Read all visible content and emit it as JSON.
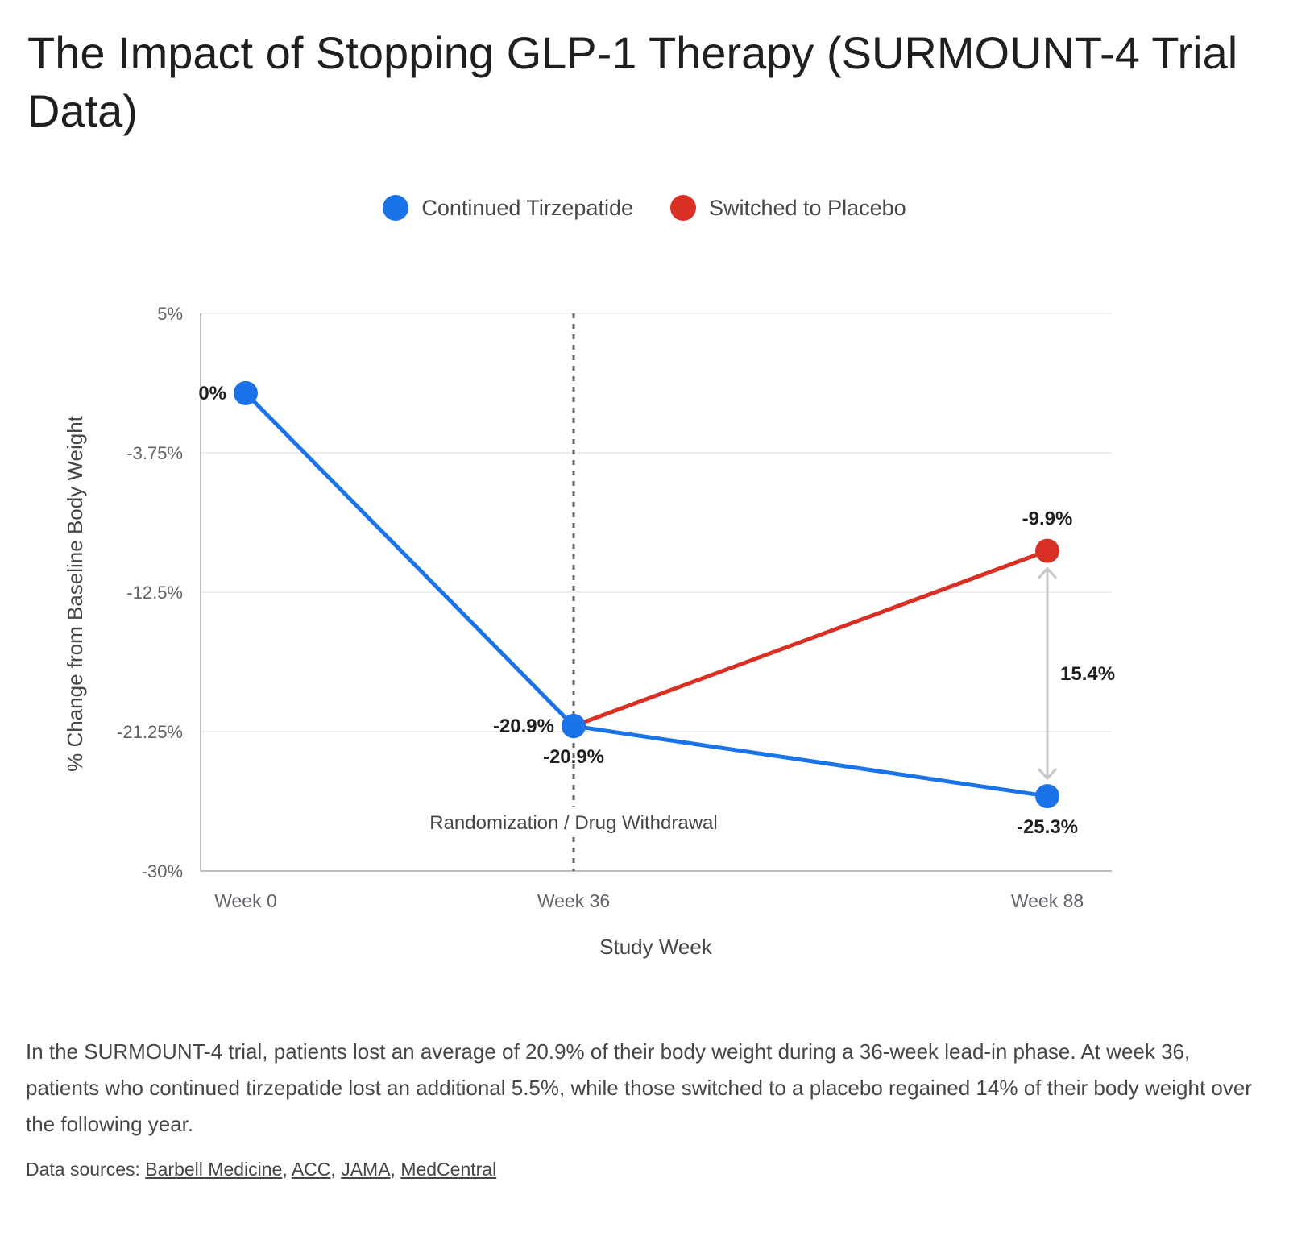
{
  "title": "The Impact of Stopping GLP-1 Therapy (SURMOUNT-4 Trial Data)",
  "colors": {
    "continued": "#1a73e8",
    "placebo": "#d93025",
    "gap_arrow": "#c7c7c7",
    "grid": "#e8e8e8",
    "axis": "#bdbdbd",
    "divider": "#5f6368"
  },
  "chart_data": {
    "type": "line",
    "xlabel": "Study Week",
    "ylabel": "% Change from Baseline Body Weight",
    "x": [
      0,
      36,
      88
    ],
    "x_tick_labels": [
      "Week 0",
      "Week 36",
      "Week 88"
    ],
    "ylim": [
      -30,
      5
    ],
    "y_ticks": [
      5,
      -3.75,
      -12.5,
      -21.25,
      -30
    ],
    "y_tick_labels": [
      "5%",
      "-3.75%",
      "-12.5%",
      "-21.25%",
      "-30%"
    ],
    "grid": true,
    "legend_position": "top-center",
    "series": [
      {
        "name": "Continued Tirzepatide",
        "color": "#1a73e8",
        "points": [
          {
            "x": 0,
            "y": 0,
            "label": "0%"
          },
          {
            "x": 36,
            "y": -20.9,
            "label": "-20.9%"
          },
          {
            "x": 88,
            "y": -25.3,
            "label": "-25.3%"
          }
        ]
      },
      {
        "name": "Switched to Placebo",
        "color": "#d93025",
        "points": [
          {
            "x": 36,
            "y": -20.9,
            "label": "-20.9%"
          },
          {
            "x": 88,
            "y": -9.9,
            "label": "-9.9%"
          }
        ]
      }
    ],
    "annotations": {
      "vertical_line": {
        "x": 36,
        "label": "Randomization / Drug Withdrawal"
      },
      "gap": {
        "x": 88,
        "from": -25.3,
        "to": -9.9,
        "label": "15.4%"
      }
    }
  },
  "summary": "In the SURMOUNT-4 trial, patients lost an average of 20.9% of their body weight during a 36-week lead-in phase. At week 36, patients who continued tirzepatide lost an additional 5.5%, while those switched to a placebo regained 14% of their body weight over the following year.",
  "sources": {
    "prefix": "Data sources: ",
    "links": [
      "Barbell Medicine",
      "ACC",
      "JAMA",
      "MedCentral"
    ]
  }
}
